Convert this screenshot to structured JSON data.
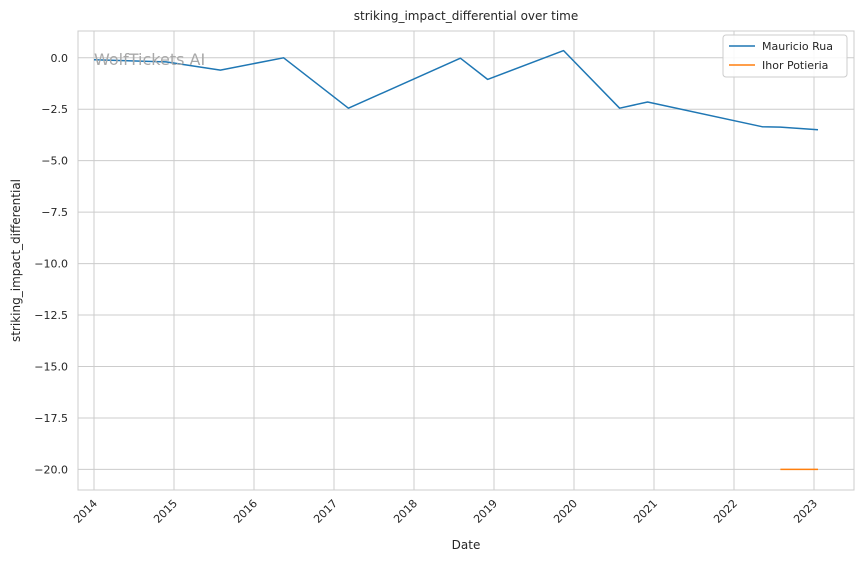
{
  "chart_data": {
    "type": "line",
    "title": "striking_impact_differential over time",
    "xlabel": "Date",
    "ylabel": "striking_impact_differential",
    "watermark": "WolfTickets AI",
    "grid": true,
    "legend_position": "top-right",
    "xlim": [
      2013.8,
      2023.5
    ],
    "ylim": [
      -21.0,
      1.3
    ],
    "x_ticks": [
      2014,
      2015,
      2016,
      2017,
      2018,
      2019,
      2020,
      2021,
      2022,
      2023
    ],
    "x_tick_labels": [
      "2014",
      "2015",
      "2016",
      "2017",
      "2018",
      "2019",
      "2020",
      "2021",
      "2022",
      "2023"
    ],
    "y_ticks": [
      0,
      -2.5,
      -5,
      -7.5,
      -10,
      -12.5,
      -15,
      -17.5,
      -20
    ],
    "y_tick_labels": [
      "0.0",
      "−2.5",
      "−5.0",
      "−7.5",
      "−10.0",
      "−12.5",
      "−15.0",
      "−17.5",
      "−20.0"
    ],
    "series": [
      {
        "name": "Mauricio Rua",
        "color": "#1f77b4",
        "x": [
          2014.0,
          2014.9,
          2015.58,
          2016.37,
          2017.18,
          2018.58,
          2018.92,
          2019.87,
          2020.57,
          2020.92,
          2022.35,
          2022.58,
          2023.05
        ],
        "y": [
          -0.1,
          -0.2,
          -0.6,
          0.0,
          -2.45,
          -0.02,
          -1.05,
          0.35,
          -2.45,
          -2.15,
          -3.35,
          -3.37,
          -3.5
        ]
      },
      {
        "name": "Ihor Potieria",
        "color": "#ff7f0e",
        "x": [
          2022.58,
          2023.05
        ],
        "y": [
          -20.0,
          -20.0
        ]
      }
    ]
  }
}
